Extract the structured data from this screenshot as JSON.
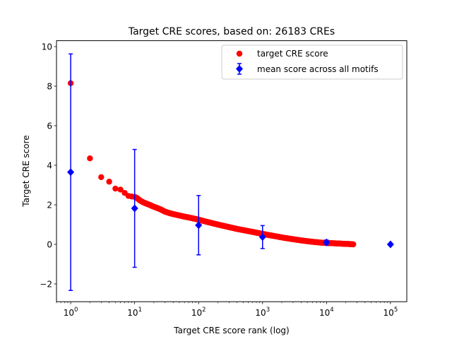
{
  "chart_data": {
    "type": "scatter",
    "title": "Target CRE scores, based on: 26183 CREs",
    "xlabel": "Target CRE score rank (log)",
    "ylabel": "Target CRE score",
    "xscale": "log",
    "xlim": [
      0.6,
      180000
    ],
    "ylim": [
      -2.9,
      10.3
    ],
    "xticks": [
      {
        "value": 1,
        "base": "10",
        "exp": "0"
      },
      {
        "value": 10,
        "base": "10",
        "exp": "1"
      },
      {
        "value": 100,
        "base": "10",
        "exp": "2"
      },
      {
        "value": 1000,
        "base": "10",
        "exp": "3"
      },
      {
        "value": 10000,
        "base": "10",
        "exp": "4"
      },
      {
        "value": 100000,
        "base": "10",
        "exp": "5"
      }
    ],
    "yticks": [
      {
        "value": -2,
        "label": "−2"
      },
      {
        "value": 0,
        "label": "0"
      },
      {
        "value": 2,
        "label": "2"
      },
      {
        "value": 4,
        "label": "4"
      },
      {
        "value": 6,
        "label": "6"
      },
      {
        "value": 8,
        "label": "8"
      },
      {
        "value": 10,
        "label": "10"
      }
    ],
    "grid": false,
    "legend_position": "top-right",
    "series": [
      {
        "name": "target CRE score",
        "marker": "circle",
        "color": "#ff0000",
        "x": [
          1,
          2,
          3,
          4,
          5,
          6,
          7,
          8,
          9,
          10,
          11,
          12,
          13,
          14,
          15,
          17,
          19,
          22,
          25,
          30,
          35,
          40,
          50,
          60,
          70,
          80,
          100,
          120,
          150,
          200,
          250,
          300,
          400,
          500,
          600,
          800,
          1000,
          1300,
          1600,
          2000,
          2500,
          3000,
          4000,
          5000,
          6000,
          7000,
          8000,
          10000,
          12000,
          14000,
          16000,
          18000,
          20000,
          22000,
          24000,
          26183
        ],
        "y": [
          8.15,
          4.35,
          3.4,
          3.17,
          2.82,
          2.77,
          2.6,
          2.45,
          2.42,
          2.4,
          2.33,
          2.23,
          2.16,
          2.11,
          2.07,
          2.0,
          1.93,
          1.85,
          1.78,
          1.65,
          1.58,
          1.53,
          1.46,
          1.4,
          1.36,
          1.32,
          1.25,
          1.18,
          1.1,
          1.0,
          0.93,
          0.87,
          0.78,
          0.72,
          0.67,
          0.59,
          0.53,
          0.46,
          0.41,
          0.35,
          0.3,
          0.26,
          0.2,
          0.16,
          0.13,
          0.11,
          0.09,
          0.07,
          0.06,
          0.05,
          0.04,
          0.03,
          0.02,
          0.02,
          0.01,
          0.0
        ]
      },
      {
        "name": "mean score across all motifs",
        "marker": "diamond",
        "color": "#0000ff",
        "x": [
          1,
          10,
          100,
          1000,
          10000,
          100000
        ],
        "y": [
          3.65,
          1.82,
          0.97,
          0.37,
          0.1,
          0.0
        ],
        "yerr": [
          5.98,
          2.98,
          1.5,
          0.58,
          0.12,
          0.0
        ]
      }
    ]
  }
}
